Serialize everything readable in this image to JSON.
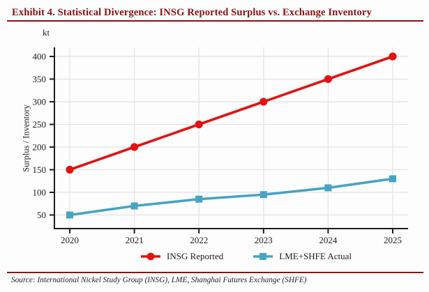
{
  "header": {
    "title": "Exhibit 4. Statistical Divergence: INSG Reported Surplus vs. Exchange Inventory"
  },
  "footer": {
    "source": "Source: International Nickel Study Group (INSG), LME, Shanghai Futures Exchange (SHFE)"
  },
  "colors": {
    "accent_maroon": "#8b1212",
    "insg_red": "#e11313",
    "lme_teal": "#47a3c2",
    "grid": "#e3e3e3",
    "axis": "#1c1c1c"
  },
  "chart_data": {
    "type": "line",
    "title": "Exhibit 4. Statistical Divergence: INSG Reported Surplus vs. Exchange Inventory",
    "unit_label": "kt",
    "ylabel": "Surplus / Inventory",
    "xlabel": "",
    "categories": [
      "2020",
      "2021",
      "2022",
      "2023",
      "2024",
      "2025"
    ],
    "yticks": [
      50,
      100,
      150,
      200,
      250,
      300,
      350,
      400
    ],
    "ylim": [
      20,
      420
    ],
    "grid": true,
    "legend_position": "bottom",
    "series": [
      {
        "name": "INSG Reported",
        "color": "#e11313",
        "marker": "circle",
        "values": [
          150,
          200,
          250,
          300,
          350,
          400
        ]
      },
      {
        "name": "LME+SHFE Actual",
        "color": "#47a3c2",
        "marker": "square",
        "values": [
          50,
          70,
          85,
          95,
          110,
          130
        ]
      }
    ]
  }
}
